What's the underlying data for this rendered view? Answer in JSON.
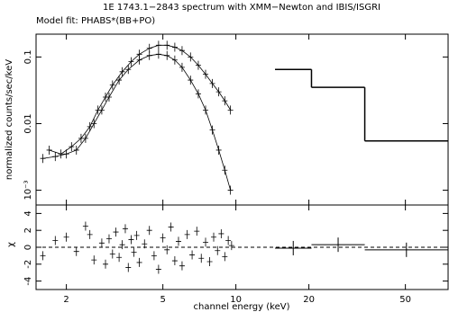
{
  "chart_data": [
    {
      "type": "spectrum",
      "title": "1E 1743.1−2843 spectrum with XMM−Newton and IBIS/ISGRI",
      "subtitle": "Model fit: PHABS*(BB+PO)",
      "y_label": "normalized counts/sec/keV",
      "xscale": "log",
      "yscale": "log",
      "xlim": [
        1.5,
        75
      ],
      "ylim": [
        0.0006,
        0.22
      ],
      "yticks": [
        {
          "value": 0.001,
          "label": "10⁻³"
        },
        0.01,
        0.1
      ],
      "series": [
        {
          "style": "points",
          "color": "#000000",
          "x": [
            1.7,
            1.9,
            2.1,
            2.3,
            2.5,
            2.7,
            2.9,
            3.1,
            3.4,
            3.7,
            4.0,
            4.4,
            4.8,
            5.2,
            5.6,
            6.0,
            6.5,
            7.0,
            7.5,
            8.0,
            8.5,
            9.0,
            9.5
          ],
          "values": [
            0.004,
            0.0035,
            0.0045,
            0.006,
            0.009,
            0.016,
            0.025,
            0.038,
            0.06,
            0.085,
            0.11,
            0.135,
            0.15,
            0.15,
            0.14,
            0.125,
            0.1,
            0.075,
            0.055,
            0.04,
            0.03,
            0.022,
            0.016
          ]
        },
        {
          "style": "points",
          "color": "#000000",
          "x": [
            1.6,
            1.8,
            2.0,
            2.2,
            2.4,
            2.6,
            2.8,
            3.0,
            3.3,
            3.6,
            4.0,
            4.4,
            4.8,
            5.2,
            5.6,
            6.0,
            6.5,
            7.0,
            7.5,
            8.0,
            8.5,
            9.0,
            9.5
          ],
          "values": [
            0.003,
            0.0032,
            0.0035,
            0.004,
            0.006,
            0.01,
            0.016,
            0.025,
            0.045,
            0.065,
            0.09,
            0.105,
            0.11,
            0.105,
            0.09,
            0.07,
            0.045,
            0.028,
            0.016,
            0.008,
            0.004,
            0.002,
            0.001
          ]
        },
        {
          "style": "step",
          "color": "#000000",
          "bins": [
            14.5,
            20.5,
            34,
            75
          ],
          "values": [
            0.065,
            0.035,
            0.0055
          ]
        }
      ]
    },
    {
      "type": "residuals",
      "y_label": "χ",
      "x_label": "channel energy (keV)",
      "xscale": "log",
      "xlim": [
        1.5,
        75
      ],
      "ylim": [
        -5,
        5
      ],
      "xticks": [
        2,
        5,
        10,
        20,
        50
      ],
      "yticks": [
        -4,
        -2,
        0,
        2,
        4
      ],
      "hline": 0,
      "series": [
        {
          "style": "points",
          "color": "#000000",
          "x": [
            1.6,
            1.8,
            2.0,
            2.2,
            2.4,
            2.5,
            2.6,
            2.8,
            2.9,
            3.0,
            3.1,
            3.2,
            3.3,
            3.4,
            3.5,
            3.6,
            3.7,
            3.8,
            3.9,
            4.0,
            4.2,
            4.4,
            4.6,
            4.8,
            5.0,
            5.2,
            5.4,
            5.6,
            5.8,
            6.0,
            6.3,
            6.6,
            6.9,
            7.2,
            7.5,
            7.8,
            8.1,
            8.4,
            8.7,
            9.0,
            9.3,
            9.6
          ],
          "values": [
            -1,
            0.8,
            1.2,
            -0.5,
            2.5,
            1.5,
            -1.5,
            0.5,
            -2,
            1,
            -0.8,
            1.8,
            -1.2,
            0.3,
            2.2,
            -2.4,
            0.9,
            -0.6,
            1.4,
            -1.8,
            0.4,
            2,
            -1,
            -2.6,
            1.1,
            -0.3,
            2.4,
            -1.6,
            0.7,
            -2.2,
            1.5,
            -0.9,
            1.9,
            -1.3,
            0.6,
            -1.7,
            1.2,
            -0.4,
            1.6,
            -1.1,
            0.8,
            0.2
          ]
        },
        {
          "style": "binned",
          "color": "#000000",
          "bins": [
            14.5,
            20.5,
            34,
            75
          ],
          "values": [
            -0.1,
            0.3,
            -0.3
          ]
        }
      ]
    }
  ]
}
